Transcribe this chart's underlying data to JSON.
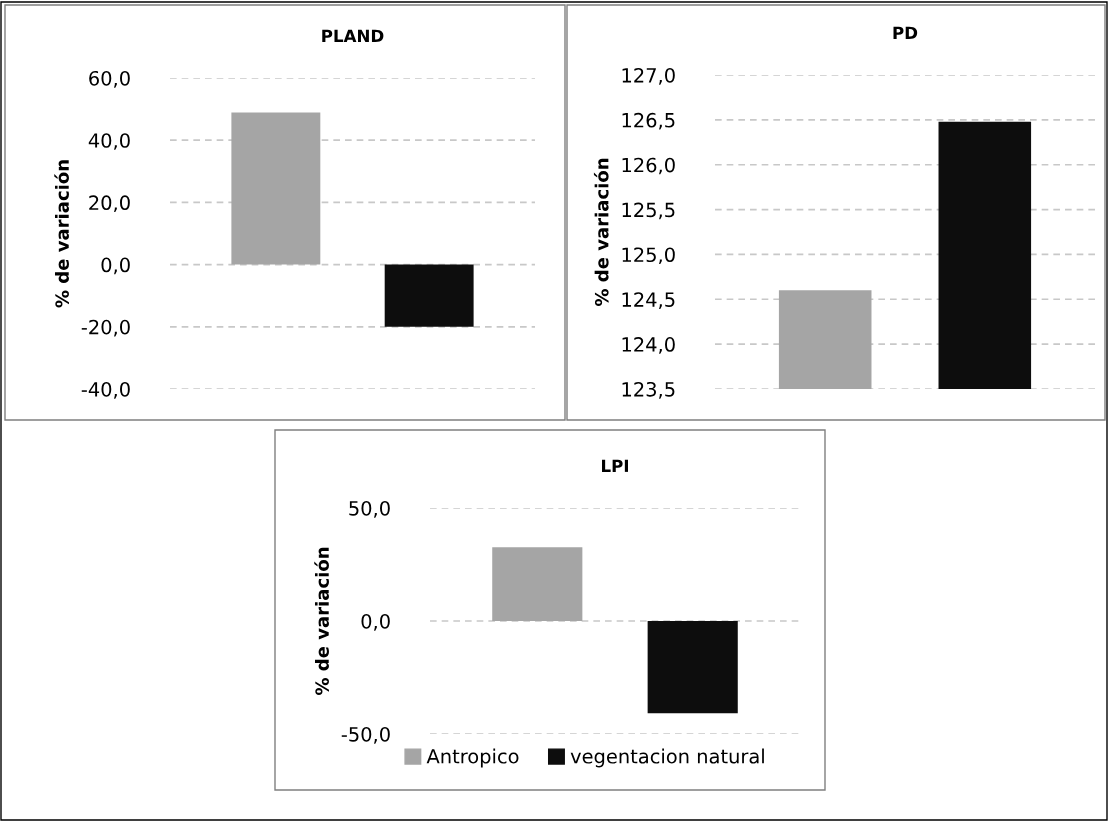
{
  "chart_data": [
    {
      "type": "bar",
      "title": "PLAND",
      "ylabel": "% de variación",
      "categories": [
        null
      ],
      "series": [
        {
          "color": "#a5a5a5",
          "values": [
            48.9
          ]
        },
        {
          "color": "#0d0d0d",
          "values": [
            -20.0
          ]
        }
      ],
      "ylim": [
        -40,
        60
      ],
      "yticks": [
        {
          "value": -40,
          "label": "-40,0"
        },
        {
          "value": -20,
          "label": "-20,0"
        },
        {
          "value": 0,
          "label": "0,0"
        },
        {
          "value": 20,
          "label": "20,0"
        },
        {
          "value": 40,
          "label": "40,0"
        },
        {
          "value": 60,
          "label": "60,0"
        }
      ],
      "grid": "y",
      "line_style": "dashed"
    },
    {
      "type": "bar",
      "title": "PD",
      "ylabel": "% de variación",
      "categories": [
        null
      ],
      "series": [
        {
          "color": "#a5a5a5",
          "values": [
            124.6
          ]
        },
        {
          "color": "#0d0d0d",
          "values": [
            126.48
          ]
        }
      ],
      "ylim": [
        123.5,
        127
      ],
      "yticks": [
        {
          "value": 123.5,
          "label": "123,5"
        },
        {
          "value": 124,
          "label": "124,0"
        },
        {
          "value": 124.5,
          "label": "124,5"
        },
        {
          "value": 125,
          "label": "125,0"
        },
        {
          "value": 125.5,
          "label": "125,5"
        },
        {
          "value": 126,
          "label": "126,0"
        },
        {
          "value": 126.5,
          "label": "126,5"
        },
        {
          "value": 127,
          "label": "127,0"
        }
      ],
      "grid": "y",
      "line_style": "dashed"
    },
    {
      "type": "bar",
      "title": "LPI",
      "ylabel": "% de variación",
      "categories": [
        null
      ],
      "series": [
        {
          "name": "Antropico",
          "color": "#a5a5a5",
          "values": [
            32.6
          ]
        },
        {
          "name": "vegentacion natural",
          "color": "#0d0d0d",
          "values": [
            -40.8
          ]
        }
      ],
      "ylim": [
        -50,
        50
      ],
      "yticks": [
        {
          "value": -50,
          "label": "-50,0"
        },
        {
          "value": 0,
          "label": "0,0"
        },
        {
          "value": 50,
          "label": "50,0"
        }
      ],
      "grid": "y",
      "line_style": "dashed",
      "legend": "bottom"
    }
  ]
}
